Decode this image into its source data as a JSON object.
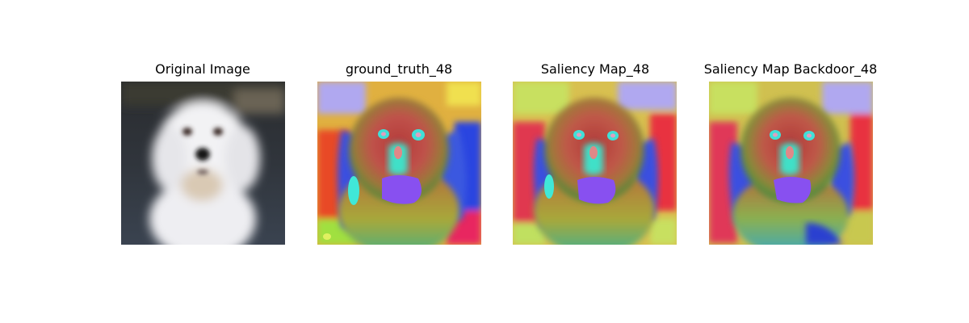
{
  "figure": {
    "panels": [
      {
        "title": "Original Image",
        "image": "blurred-white-dog-photo"
      },
      {
        "title": "ground_truth_48",
        "image": "rainbow-saliency-map"
      },
      {
        "title": "Saliency Map_48",
        "image": "rainbow-saliency-map"
      },
      {
        "title": "Saliency Map Backdoor_48",
        "image": "rainbow-saliency-map"
      }
    ]
  }
}
